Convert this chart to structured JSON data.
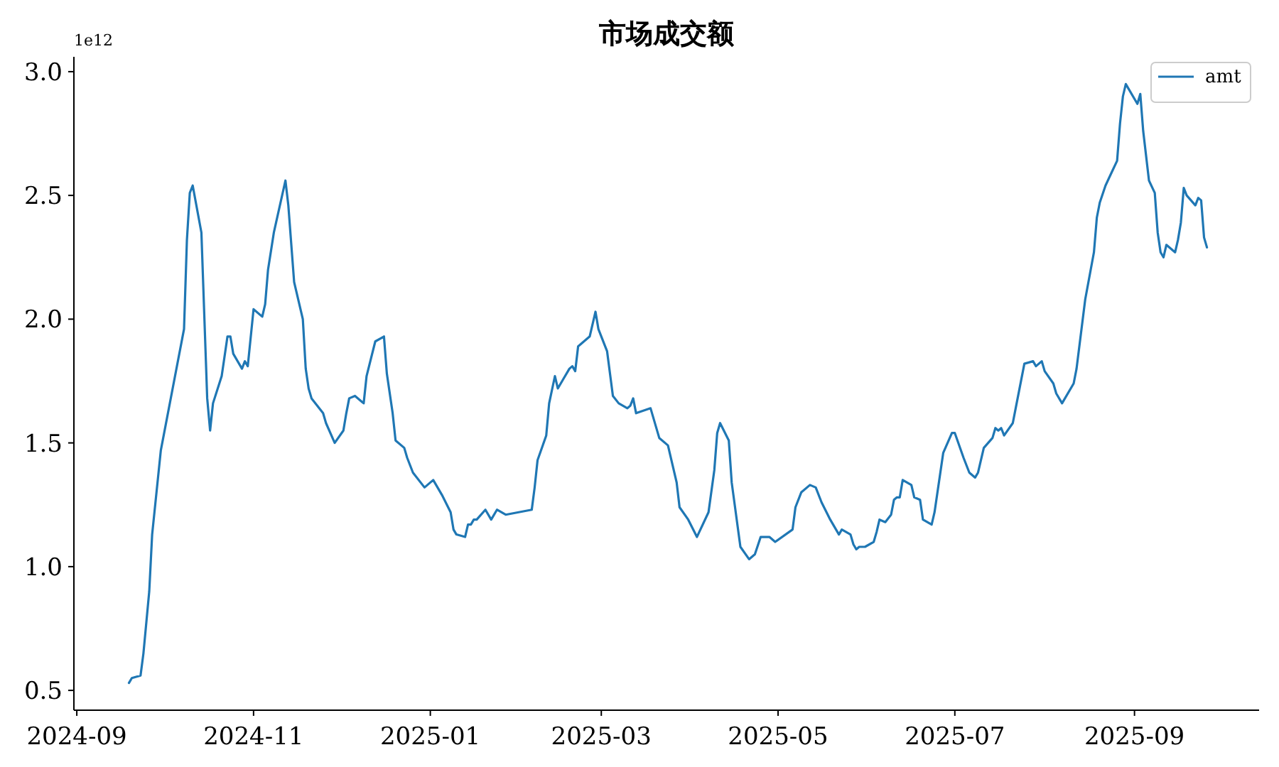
{
  "chart_data": {
    "type": "line",
    "title": "市场成交额",
    "annotations": [
      "1e12"
    ],
    "x": [
      "2024-09-19",
      "2024-09-20",
      "2024-09-23",
      "2024-09-24",
      "2024-09-26",
      "2024-09-27",
      "2024-09-30",
      "2024-10-08",
      "2024-10-09",
      "2024-10-10",
      "2024-10-11",
      "2024-10-14",
      "2024-10-16",
      "2024-10-17",
      "2024-10-18",
      "2024-10-21",
      "2024-10-23",
      "2024-10-24",
      "2024-10-25",
      "2024-10-28",
      "2024-10-29",
      "2024-10-30",
      "2024-11-01",
      "2024-11-04",
      "2024-11-05",
      "2024-11-06",
      "2024-11-08",
      "2024-11-12",
      "2024-11-13",
      "2024-11-15",
      "2024-11-18",
      "2024-11-19",
      "2024-11-20",
      "2024-11-21",
      "2024-11-25",
      "2024-11-26",
      "2024-11-29",
      "2024-12-02",
      "2024-12-03",
      "2024-12-04",
      "2024-12-06",
      "2024-12-09",
      "2024-12-10",
      "2024-12-13",
      "2024-12-16",
      "2024-12-17",
      "2024-12-19",
      "2024-12-20",
      "2024-12-23",
      "2024-12-24",
      "2024-12-26",
      "2024-12-30",
      "2025-01-02",
      "2025-01-05",
      "2025-01-08",
      "2025-01-09",
      "2025-01-10",
      "2025-01-13",
      "2025-01-14",
      "2025-01-15",
      "2025-01-16",
      "2025-01-17",
      "2025-01-20",
      "2025-01-22",
      "2025-01-24",
      "2025-01-27",
      "2025-02-05",
      "2025-02-06",
      "2025-02-07",
      "2025-02-10",
      "2025-02-11",
      "2025-02-13",
      "2025-02-14",
      "2025-02-16",
      "2025-02-18",
      "2025-02-19",
      "2025-02-20",
      "2025-02-21",
      "2025-02-24",
      "2025-02-25",
      "2025-02-27",
      "2025-02-28",
      "2025-03-03",
      "2025-03-05",
      "2025-03-07",
      "2025-03-10",
      "2025-03-11",
      "2025-03-12",
      "2025-03-13",
      "2025-03-18",
      "2025-03-21",
      "2025-03-24",
      "2025-03-27",
      "2025-03-28",
      "2025-03-31",
      "2025-04-03",
      "2025-04-07",
      "2025-04-09",
      "2025-04-10",
      "2025-04-11",
      "2025-04-14",
      "2025-04-15",
      "2025-04-18",
      "2025-04-21",
      "2025-04-23",
      "2025-04-25",
      "2025-04-28",
      "2025-04-30",
      "2025-05-06",
      "2025-05-07",
      "2025-05-09",
      "2025-05-12",
      "2025-05-14",
      "2025-05-16",
      "2025-05-19",
      "2025-05-22",
      "2025-05-23",
      "2025-05-26",
      "2025-05-27",
      "2025-05-28",
      "2025-05-29",
      "2025-05-31",
      "2025-06-03",
      "2025-06-04",
      "2025-06-05",
      "2025-06-07",
      "2025-06-09",
      "2025-06-10",
      "2025-06-11",
      "2025-06-12",
      "2025-06-13",
      "2025-06-16",
      "2025-06-17",
      "2025-06-19",
      "2025-06-20",
      "2025-06-23",
      "2025-06-24",
      "2025-06-27",
      "2025-06-30",
      "2025-07-01",
      "2025-07-04",
      "2025-07-06",
      "2025-07-08",
      "2025-07-09",
      "2025-07-11",
      "2025-07-14",
      "2025-07-15",
      "2025-07-16",
      "2025-07-17",
      "2025-07-18",
      "2025-07-21",
      "2025-07-22",
      "2025-07-25",
      "2025-07-28",
      "2025-07-29",
      "2025-07-31",
      "2025-08-01",
      "2025-08-04",
      "2025-08-05",
      "2025-08-07",
      "2025-08-11",
      "2025-08-12",
      "2025-08-15",
      "2025-08-18",
      "2025-08-19",
      "2025-08-20",
      "2025-08-22",
      "2025-08-24",
      "2025-08-26",
      "2025-08-27",
      "2025-08-28",
      "2025-08-29",
      "2025-09-02",
      "2025-09-03",
      "2025-09-04",
      "2025-09-06",
      "2025-09-08",
      "2025-09-09",
      "2025-09-10",
      "2025-09-11",
      "2025-09-12",
      "2025-09-15",
      "2025-09-16",
      "2025-09-17",
      "2025-09-18",
      "2025-09-19",
      "2025-09-22",
      "2025-09-23",
      "2025-09-24",
      "2025-09-25",
      "2025-09-26"
    ],
    "series": [
      {
        "name": "amt",
        "color": "#1f77b4",
        "values": [
          0.53,
          0.55,
          0.56,
          0.65,
          0.9,
          1.13,
          1.47,
          1.96,
          2.32,
          2.51,
          2.54,
          2.35,
          1.68,
          1.55,
          1.66,
          1.77,
          1.93,
          1.93,
          1.86,
          1.8,
          1.83,
          1.81,
          2.04,
          2.01,
          2.06,
          2.2,
          2.35,
          2.56,
          2.46,
          2.15,
          2.0,
          1.8,
          1.72,
          1.68,
          1.62,
          1.58,
          1.5,
          1.55,
          1.62,
          1.68,
          1.69,
          1.66,
          1.77,
          1.91,
          1.93,
          1.78,
          1.62,
          1.51,
          1.48,
          1.44,
          1.38,
          1.32,
          1.35,
          1.29,
          1.22,
          1.15,
          1.13,
          1.12,
          1.17,
          1.17,
          1.19,
          1.19,
          1.23,
          1.19,
          1.23,
          1.21,
          1.23,
          1.32,
          1.43,
          1.53,
          1.66,
          1.77,
          1.72,
          1.76,
          1.8,
          1.81,
          1.79,
          1.89,
          1.92,
          1.93,
          2.03,
          1.96,
          1.87,
          1.69,
          1.66,
          1.64,
          1.65,
          1.68,
          1.62,
          1.64,
          1.52,
          1.49,
          1.34,
          1.24,
          1.19,
          1.12,
          1.22,
          1.39,
          1.54,
          1.58,
          1.51,
          1.34,
          1.08,
          1.03,
          1.05,
          1.12,
          1.12,
          1.1,
          1.15,
          1.24,
          1.3,
          1.33,
          1.32,
          1.26,
          1.19,
          1.13,
          1.15,
          1.13,
          1.09,
          1.07,
          1.08,
          1.08,
          1.1,
          1.14,
          1.19,
          1.18,
          1.21,
          1.27,
          1.28,
          1.28,
          1.35,
          1.33,
          1.28,
          1.27,
          1.19,
          1.17,
          1.22,
          1.46,
          1.54,
          1.54,
          1.44,
          1.38,
          1.36,
          1.38,
          1.48,
          1.52,
          1.56,
          1.55,
          1.56,
          1.53,
          1.58,
          1.64,
          1.82,
          1.83,
          1.81,
          1.83,
          1.79,
          1.74,
          1.7,
          1.66,
          1.74,
          1.8,
          2.08,
          2.27,
          2.41,
          2.47,
          2.54,
          2.59,
          2.64,
          2.79,
          2.9,
          2.95,
          2.87,
          2.91,
          2.76,
          2.56,
          2.51,
          2.35,
          2.27,
          2.25,
          2.3,
          2.27,
          2.32,
          2.39,
          2.53,
          2.5,
          2.46,
          2.49,
          2.48,
          2.33,
          2.29
        ]
      }
    ],
    "xlim": [
      "2024-08-31",
      "2025-10-14"
    ],
    "xticks": [
      {
        "value": "2024-09-01",
        "label": "2024-09"
      },
      {
        "value": "2024-11-01",
        "label": "2024-11"
      },
      {
        "value": "2025-01-01",
        "label": "2025-01"
      },
      {
        "value": "2025-03-01",
        "label": "2025-03"
      },
      {
        "value": "2025-05-01",
        "label": "2025-05"
      },
      {
        "value": "2025-07-01",
        "label": "2025-07"
      },
      {
        "value": "2025-09-01",
        "label": "2025-09"
      }
    ],
    "ylim": [
      0.42,
      3.06
    ],
    "yticks": [
      {
        "value": 0.5,
        "label": "0.5"
      },
      {
        "value": 1,
        "label": "1.0"
      },
      {
        "value": 1.5,
        "label": "1.5"
      },
      {
        "value": 2,
        "label": "2.0"
      },
      {
        "value": 2.5,
        "label": "2.5"
      },
      {
        "value": 3,
        "label": "3.0"
      }
    ],
    "legend": "top right",
    "line_style": "solid"
  }
}
